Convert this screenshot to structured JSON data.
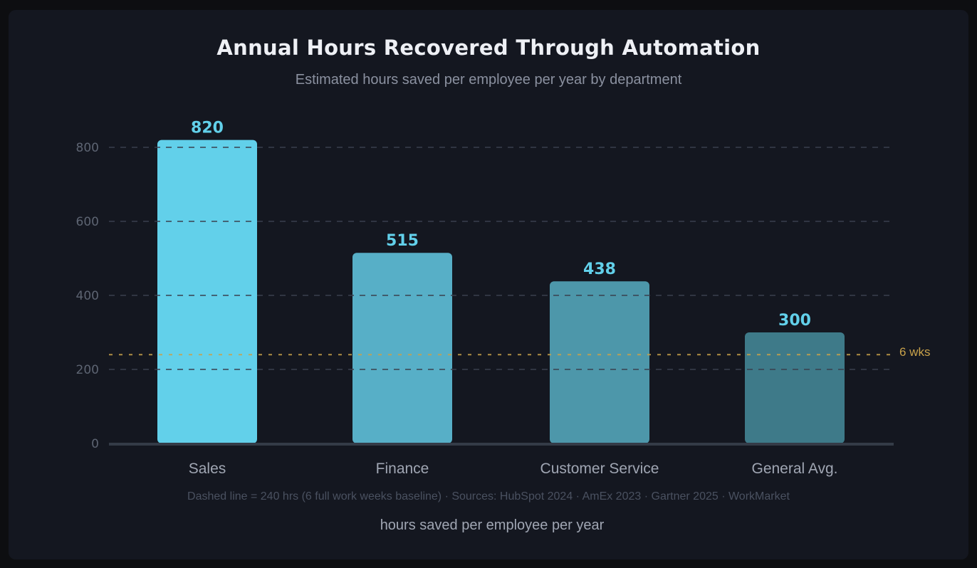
{
  "chart_data": {
    "type": "bar",
    "title": "Annual Hours Recovered Through Automation",
    "subtitle": "Estimated hours saved per employee per year by department",
    "categories": [
      "Sales",
      "Finance",
      "Customer Service",
      "General Avg."
    ],
    "values": [
      820,
      515,
      438,
      300
    ],
    "data_labels": [
      "820",
      "515",
      "438",
      "300"
    ],
    "bar_colors": [
      "#62d0ea",
      "#57afc7",
      "#4d97aa",
      "#3e7a89"
    ],
    "ylim": [
      0,
      800
    ],
    "yticks": [
      0,
      200,
      400,
      600,
      800
    ],
    "grid": true,
    "xlabel": "hours saved per employee per year",
    "ylabel": "",
    "reference_line": {
      "value": 240,
      "label": "6 wks",
      "color": "#c9a24a"
    },
    "footnote": "Dashed line = 240 hrs (6 full work weeks baseline) · Sources: HubSpot 2024 · AmEx 2023 · Gartner 2025 · WorkMarket",
    "label_color": "#62d0ea"
  }
}
